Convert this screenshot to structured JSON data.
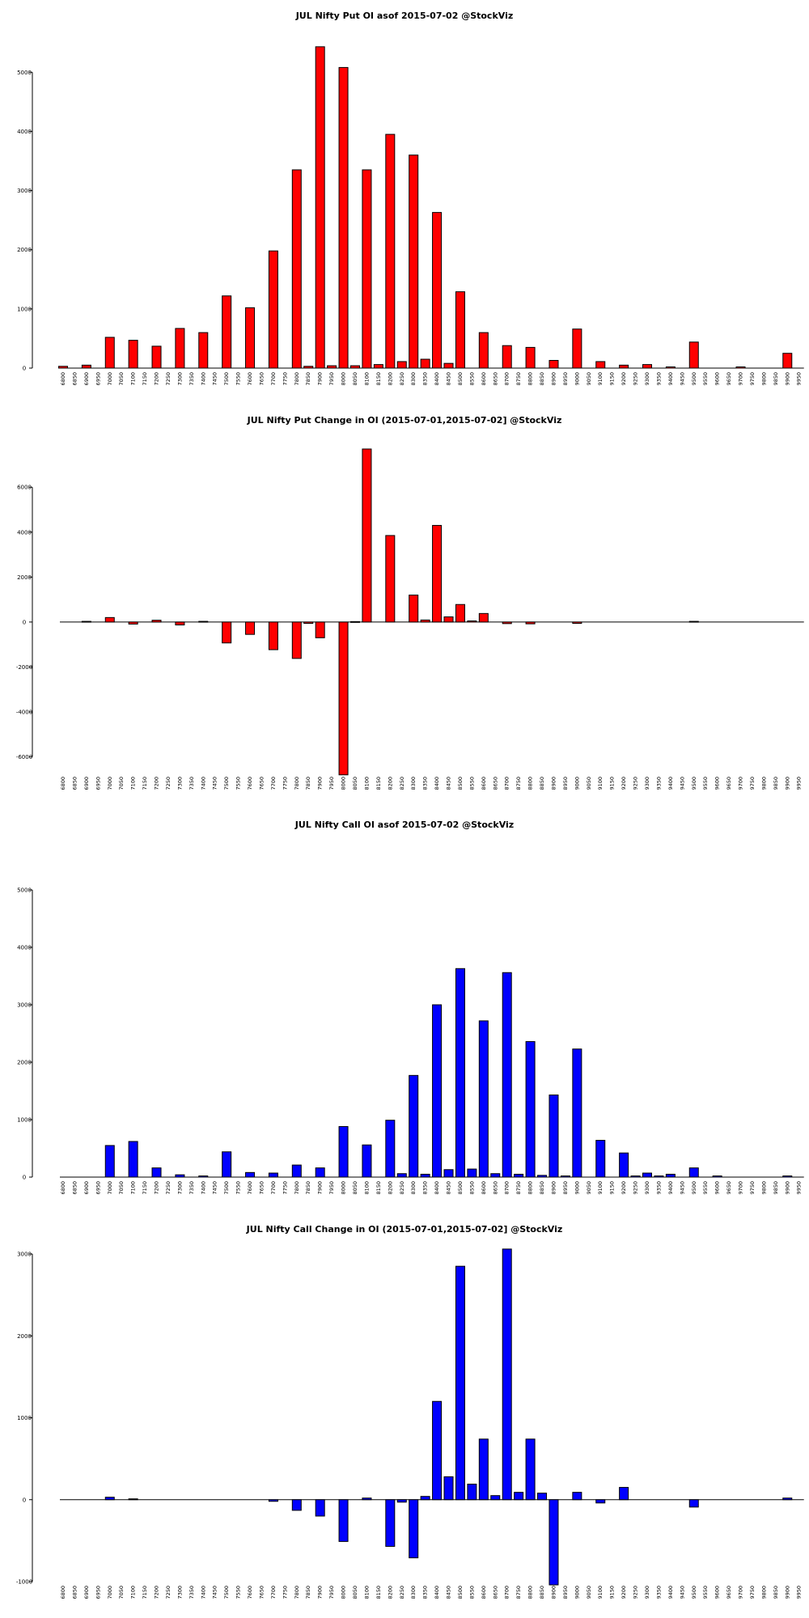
{
  "chart_data": [
    {
      "type": "bar",
      "title": "JUL Nifty Put OI asof 2015-07-02 @StockViz",
      "color": "#ff0000",
      "ylim": [
        0,
        5400
      ],
      "yticks": [
        0,
        1000,
        2000,
        3000,
        4000,
        5000
      ],
      "categories": [
        "6800",
        "6850",
        "6900",
        "6950",
        "7000",
        "7050",
        "7100",
        "7150",
        "7200",
        "7250",
        "7300",
        "7350",
        "7400",
        "7450",
        "7500",
        "7550",
        "7600",
        "7650",
        "7700",
        "7750",
        "7800",
        "7850",
        "7900",
        "7950",
        "8000",
        "8050",
        "8100",
        "8150",
        "8200",
        "8250",
        "8300",
        "8350",
        "8400",
        "8450",
        "8500",
        "8550",
        "8600",
        "8650",
        "8700",
        "8750",
        "8800",
        "8850",
        "8900",
        "8950",
        "9000",
        "9050",
        "9100",
        "9150",
        "9200",
        "9250",
        "9300",
        "9350",
        "9400",
        "9450",
        "9500",
        "9550",
        "9600",
        "9650",
        "9700",
        "9750",
        "9800",
        "9850",
        "9900",
        "9950"
      ],
      "values": [
        30,
        0,
        50,
        0,
        520,
        0,
        470,
        0,
        370,
        0,
        670,
        0,
        600,
        0,
        1220,
        0,
        1020,
        0,
        1980,
        0,
        3350,
        30,
        5430,
        40,
        5080,
        40,
        3350,
        60,
        3950,
        110,
        3600,
        150,
        2630,
        80,
        1290,
        0,
        600,
        0,
        380,
        0,
        350,
        0,
        130,
        0,
        660,
        0,
        110,
        0,
        50,
        0,
        60,
        0,
        20,
        0,
        440,
        0,
        0,
        0,
        20,
        0,
        0,
        0,
        250,
        0
      ]
    },
    {
      "type": "bar",
      "title": "JUL Nifty Put Change in OI (2015-07-01,2015-07-02] @StockViz",
      "color": "#ff0000",
      "ylim": [
        -6700,
        7700
      ],
      "yticks": [
        -6000,
        -4000,
        -2000,
        0,
        2000,
        4000,
        6000
      ],
      "categories": [
        "6800",
        "6850",
        "6900",
        "6950",
        "7000",
        "7050",
        "7100",
        "7150",
        "7200",
        "7250",
        "7300",
        "7350",
        "7400",
        "7450",
        "7500",
        "7550",
        "7600",
        "7650",
        "7700",
        "7750",
        "7800",
        "7850",
        "7900",
        "7950",
        "8000",
        "8050",
        "8100",
        "8150",
        "8200",
        "8250",
        "8300",
        "8350",
        "8400",
        "8450",
        "8500",
        "8550",
        "8600",
        "8650",
        "8700",
        "8750",
        "8800",
        "8850",
        "8900",
        "8950",
        "9000",
        "9050",
        "9100",
        "9150",
        "9200",
        "9250",
        "9300",
        "9350",
        "9400",
        "9450",
        "9500",
        "9550",
        "9600",
        "9650",
        "9700",
        "9750",
        "9800",
        "9850",
        "9900",
        "9950"
      ],
      "values": [
        0,
        0,
        30,
        0,
        200,
        0,
        -90,
        0,
        80,
        0,
        -130,
        0,
        30,
        0,
        -930,
        0,
        -550,
        0,
        -1230,
        0,
        -1620,
        -60,
        -700,
        0,
        -6800,
        20,
        7700,
        0,
        3850,
        0,
        1200,
        90,
        4300,
        230,
        780,
        50,
        380,
        0,
        -70,
        0,
        -80,
        0,
        0,
        0,
        -60,
        0,
        0,
        0,
        0,
        0,
        0,
        0,
        0,
        0,
        30,
        0,
        0,
        0,
        0,
        0,
        0,
        0,
        0,
        0
      ]
    },
    {
      "type": "bar",
      "title": "JUL Nifty Call OI asof 2015-07-02 @StockViz",
      "color": "#0000ff",
      "ylim": [
        0,
        5000
      ],
      "yticks": [
        0,
        1000,
        2000,
        3000,
        4000,
        5000
      ],
      "categories": [
        "6800",
        "6850",
        "6900",
        "6950",
        "7000",
        "7050",
        "7100",
        "7150",
        "7200",
        "7250",
        "7300",
        "7350",
        "7400",
        "7450",
        "7500",
        "7550",
        "7600",
        "7650",
        "7700",
        "7750",
        "7800",
        "7850",
        "7900",
        "7950",
        "8000",
        "8050",
        "8100",
        "8150",
        "8200",
        "8250",
        "8300",
        "8350",
        "8400",
        "8450",
        "8500",
        "8550",
        "8600",
        "8650",
        "8700",
        "8750",
        "8800",
        "8850",
        "8900",
        "8950",
        "9000",
        "9050",
        "9100",
        "9150",
        "9200",
        "9250",
        "9300",
        "9350",
        "9400",
        "9450",
        "9500",
        "9550",
        "9600",
        "9650",
        "9700",
        "9750",
        "9800",
        "9850",
        "9900",
        "9950"
      ],
      "values": [
        0,
        0,
        0,
        0,
        550,
        0,
        620,
        0,
        160,
        0,
        40,
        0,
        20,
        0,
        440,
        0,
        80,
        0,
        70,
        0,
        210,
        0,
        160,
        0,
        880,
        0,
        560,
        0,
        990,
        60,
        1770,
        50,
        3000,
        130,
        3630,
        140,
        2720,
        60,
        3560,
        50,
        2360,
        30,
        1430,
        20,
        2230,
        0,
        640,
        0,
        420,
        20,
        70,
        20,
        50,
        0,
        160,
        0,
        20,
        0,
        0,
        0,
        0,
        0,
        20,
        0
      ]
    },
    {
      "type": "bar",
      "title": "JUL Nifty Call Change in OI (2015-07-01,2015-07-02] @StockViz",
      "color": "#0000ff",
      "ylim": [
        -1000,
        3000
      ],
      "yticks": [
        -1000,
        0,
        1000,
        2000,
        3000
      ],
      "categories": [
        "6800",
        "6850",
        "6900",
        "6950",
        "7000",
        "7050",
        "7100",
        "7150",
        "7200",
        "7250",
        "7300",
        "7350",
        "7400",
        "7450",
        "7500",
        "7550",
        "7600",
        "7650",
        "7700",
        "7750",
        "7800",
        "7850",
        "7900",
        "7950",
        "8000",
        "8050",
        "8100",
        "8150",
        "8200",
        "8250",
        "8300",
        "8350",
        "8400",
        "8450",
        "8500",
        "8550",
        "8600",
        "8650",
        "8700",
        "8750",
        "8800",
        "8850",
        "8900",
        "8950",
        "9000",
        "9050",
        "9100",
        "9150",
        "9200",
        "9250",
        "9300",
        "9350",
        "9400",
        "9450",
        "9500",
        "9550",
        "9600",
        "9650",
        "9700",
        "9750",
        "9800",
        "9850",
        "9900",
        "9950"
      ],
      "values": [
        0,
        0,
        0,
        0,
        30,
        0,
        10,
        0,
        0,
        0,
        0,
        0,
        0,
        0,
        0,
        0,
        0,
        0,
        -20,
        0,
        -130,
        0,
        -200,
        0,
        -510,
        0,
        20,
        0,
        -570,
        -30,
        -710,
        40,
        1200,
        280,
        2850,
        190,
        740,
        50,
        3060,
        90,
        740,
        80,
        -1040,
        0,
        90,
        0,
        -40,
        0,
        150,
        0,
        0,
        0,
        0,
        0,
        -90,
        0,
        0,
        0,
        0,
        0,
        0,
        0,
        20,
        0
      ]
    }
  ]
}
